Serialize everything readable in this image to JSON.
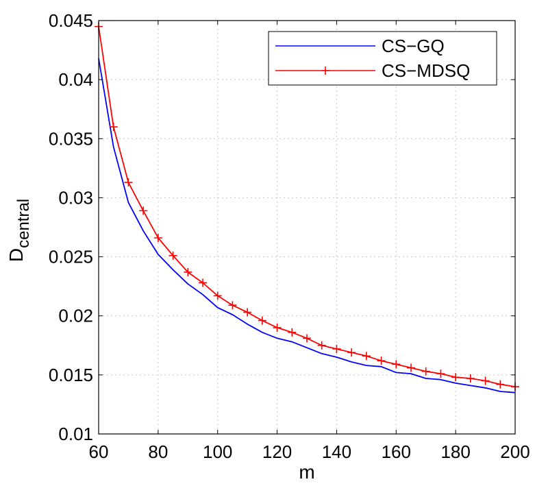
{
  "chart_data": {
    "type": "line",
    "title": "",
    "xlabel": "m",
    "ylabel_main": "D",
    "ylabel_sub": "central",
    "xlim": [
      60,
      200
    ],
    "ylim": [
      0.01,
      0.045
    ],
    "xticks": [
      60,
      80,
      100,
      120,
      140,
      160,
      180,
      200
    ],
    "yticks": [
      0.01,
      0.015,
      0.02,
      0.025,
      0.03,
      0.035,
      0.04,
      0.045
    ],
    "xtick_labels": [
      "60",
      "80",
      "100",
      "120",
      "140",
      "160",
      "180",
      "200"
    ],
    "ytick_labels": [
      "0.01",
      "0.015",
      "0.02",
      "0.025",
      "0.03",
      "0.035",
      "0.04",
      "0.045"
    ],
    "grid": true,
    "legend_position": "top-right",
    "x": [
      60,
      65,
      70,
      75,
      80,
      85,
      90,
      95,
      100,
      105,
      110,
      115,
      120,
      125,
      130,
      135,
      140,
      145,
      150,
      155,
      160,
      165,
      170,
      175,
      180,
      185,
      190,
      195,
      200
    ],
    "series": [
      {
        "name": "CS−GQ",
        "color": "#0000ff",
        "marker": "none",
        "values": [
          0.0418,
          0.0343,
          0.0296,
          0.0272,
          0.0252,
          0.0239,
          0.0227,
          0.0218,
          0.0207,
          0.0201,
          0.0193,
          0.0186,
          0.0181,
          0.0178,
          0.0173,
          0.0168,
          0.0165,
          0.0161,
          0.0158,
          0.0157,
          0.0152,
          0.0151,
          0.0147,
          0.0146,
          0.0143,
          0.0141,
          0.0139,
          0.0136,
          0.0135
        ]
      },
      {
        "name": "CS−MDSQ",
        "color": "#ff0000",
        "marker": "+",
        "values": [
          0.0445,
          0.036,
          0.0313,
          0.0289,
          0.0266,
          0.0251,
          0.0237,
          0.0228,
          0.0217,
          0.0209,
          0.0203,
          0.0196,
          0.019,
          0.0186,
          0.0181,
          0.0175,
          0.0172,
          0.0169,
          0.0166,
          0.0162,
          0.0159,
          0.0156,
          0.0153,
          0.0151,
          0.0148,
          0.0147,
          0.0145,
          0.0142,
          0.014
        ]
      }
    ]
  }
}
